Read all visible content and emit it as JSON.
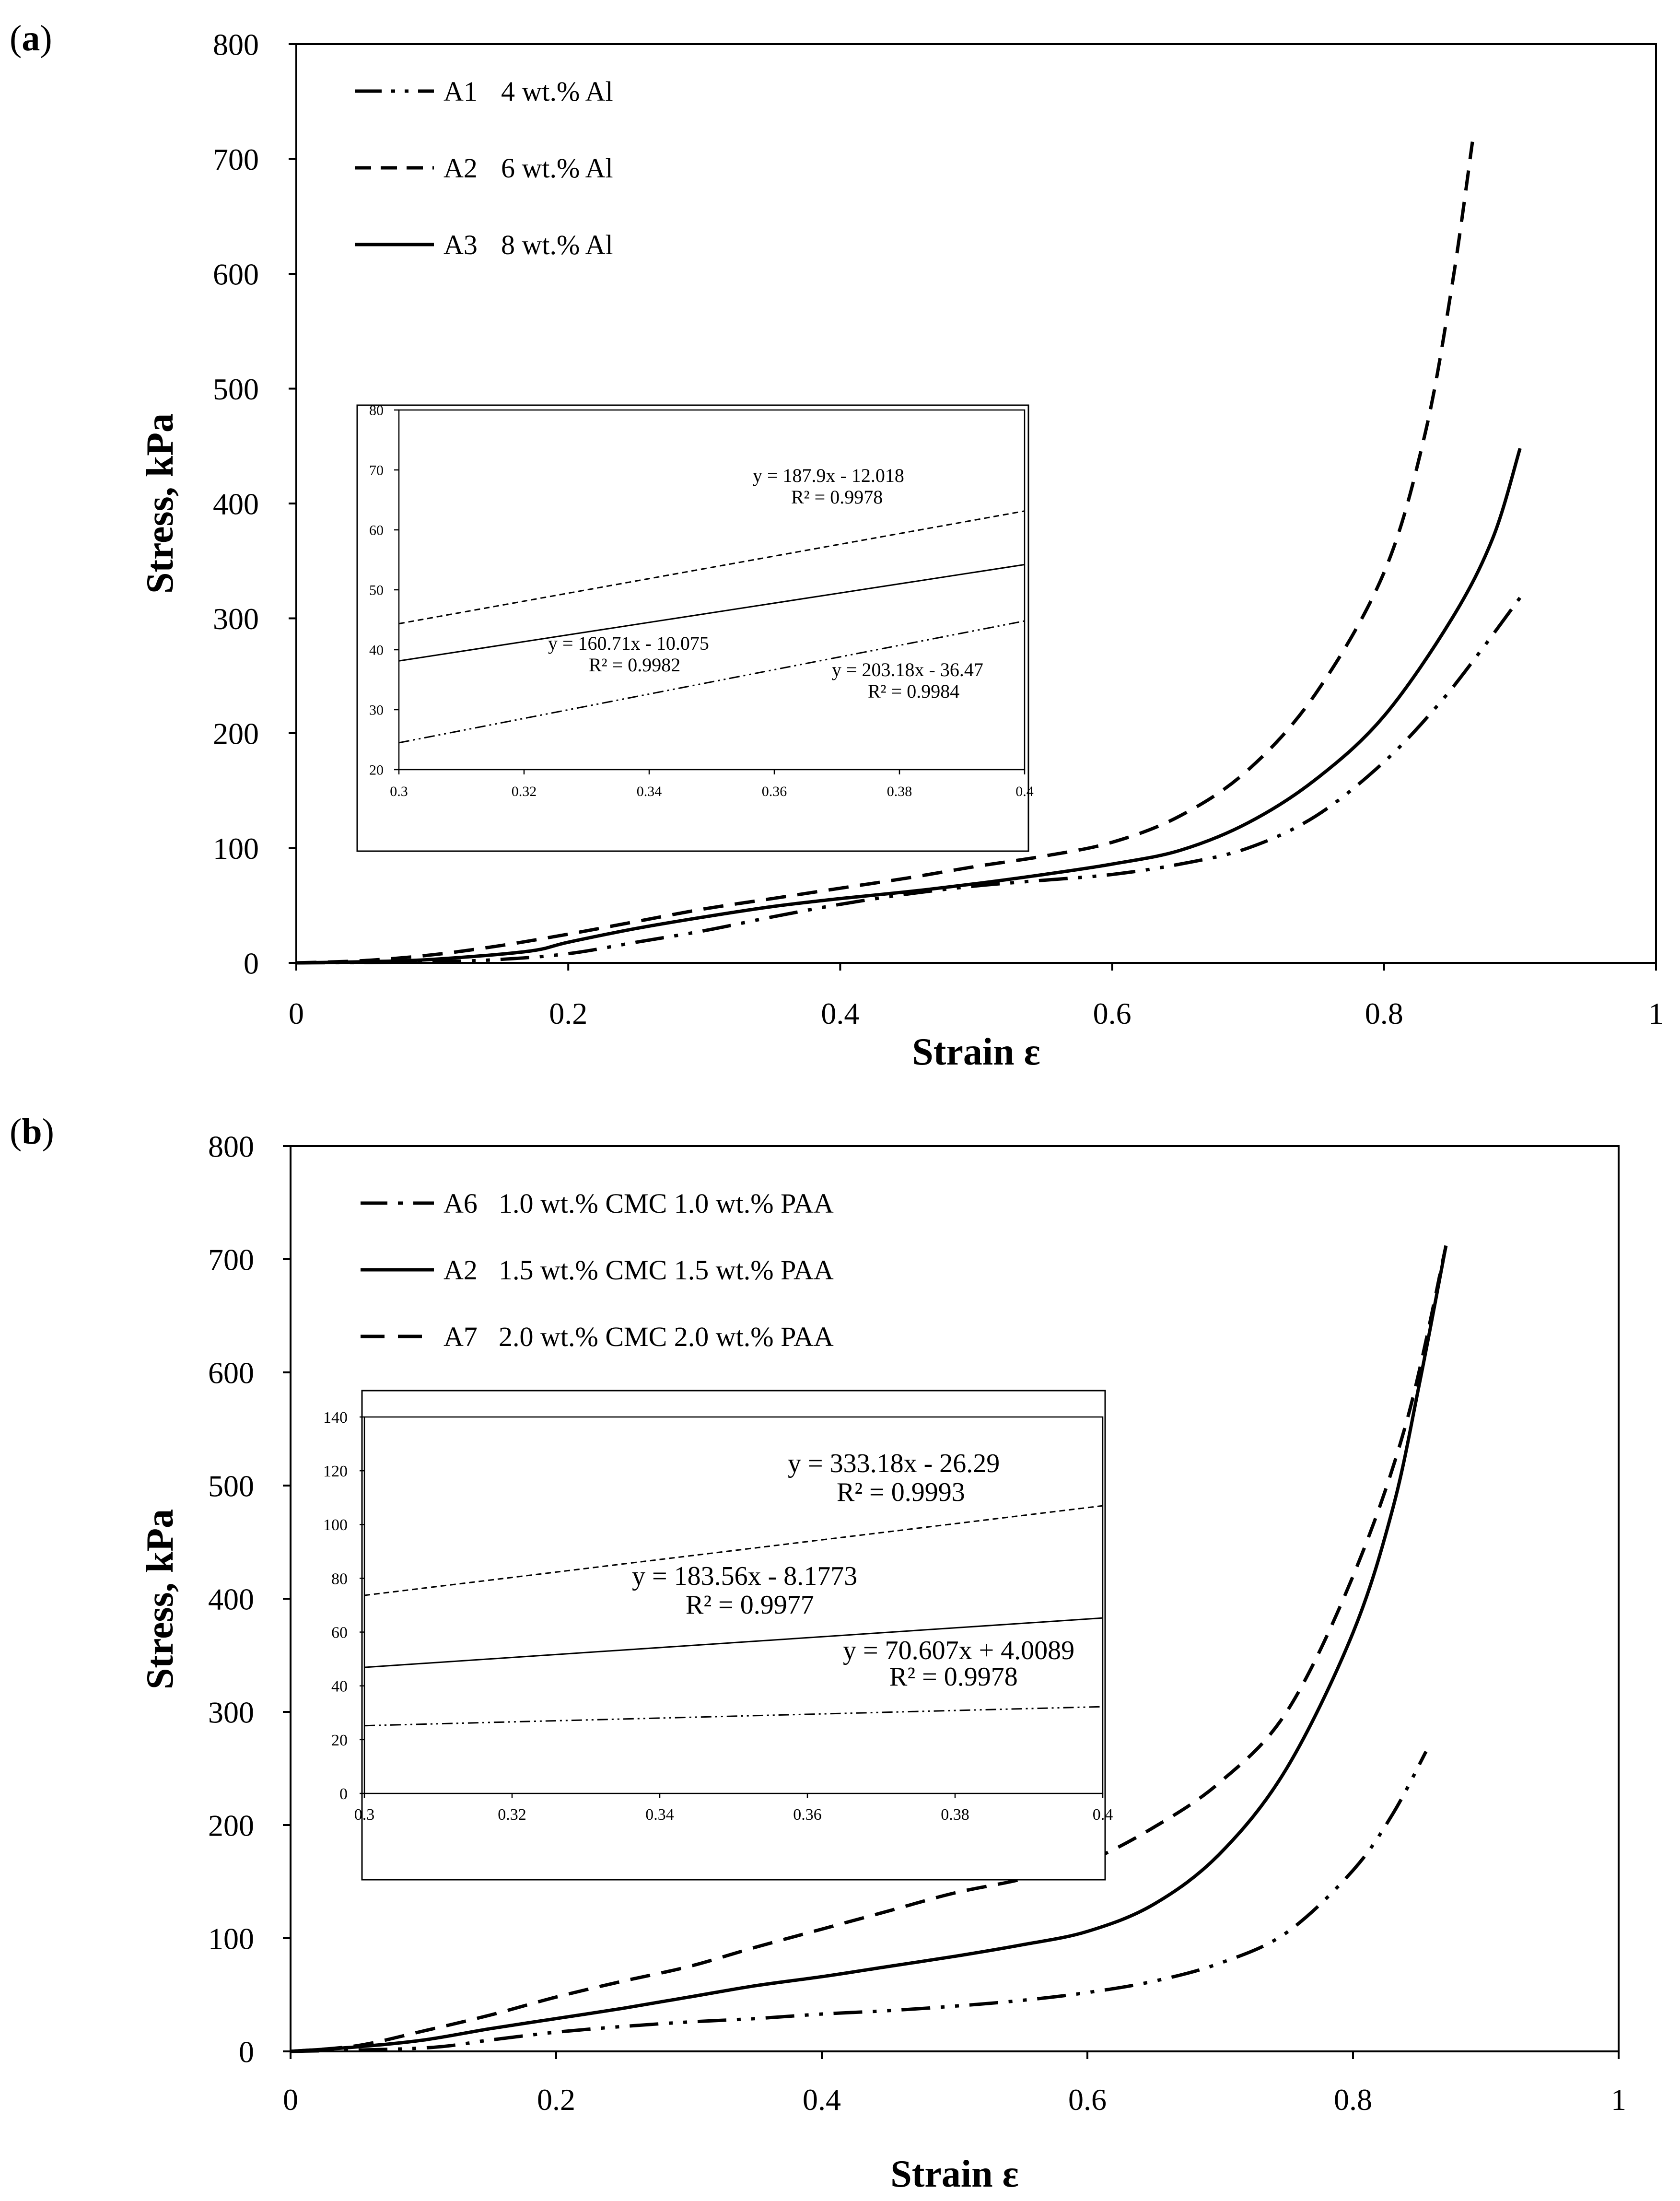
{
  "panels": [
    {
      "label_open": "(",
      "label_letter": "a",
      "label_close": ")",
      "chart_data": {
        "type": "line",
        "title": "",
        "xlabel": "Strain ε",
        "ylabel": "Stress, kPa",
        "xlim": [
          0,
          1
        ],
        "ylim": [
          0,
          800
        ],
        "x_ticks": [
          "0",
          "0.2",
          "0.4",
          "0.6",
          "0.8",
          "1"
        ],
        "y_ticks": [
          "0",
          "100",
          "200",
          "300",
          "400",
          "500",
          "600",
          "700",
          "800"
        ],
        "legend_position": "top-left",
        "series": [
          {
            "code": "A1",
            "name": "4 wt.% Al",
            "style": "dashdot",
            "x": [
              0,
              0.1,
              0.15,
              0.2,
              0.25,
              0.3,
              0.35,
              0.4,
              0.45,
              0.5,
              0.55,
              0.6,
              0.65,
              0.7,
              0.75,
              0.8,
              0.84,
              0.87,
              0.9
            ],
            "y": [
              0,
              1,
              3,
              8,
              18,
              28,
              40,
              51,
              60,
              67,
              72,
              77,
              86,
              100,
              128,
              175,
              225,
              270,
              318
            ]
          },
          {
            "code": "A2",
            "name": "6 wt.% Al",
            "style": "dash",
            "x": [
              0,
              0.05,
              0.1,
              0.15,
              0.2,
              0.25,
              0.3,
              0.35,
              0.4,
              0.45,
              0.5,
              0.55,
              0.6,
              0.65,
              0.7,
              0.75,
              0.8,
              0.83,
              0.85,
              0.865
            ],
            "y": [
              0,
              2,
              7,
              15,
              25,
              36,
              47,
              56,
              65,
              74,
              84,
              93,
              105,
              128,
              168,
              235,
              340,
              460,
              590,
              715
            ]
          },
          {
            "code": "A3",
            "name": "8 wt.% Al",
            "style": "solid",
            "x": [
              0,
              0.05,
              0.1,
              0.17,
              0.2,
              0.25,
              0.3,
              0.35,
              0.4,
              0.45,
              0.5,
              0.55,
              0.6,
              0.65,
              0.7,
              0.75,
              0.8,
              0.85,
              0.88,
              0.9
            ],
            "y": [
              0,
              1,
              3,
              10,
              18,
              30,
              40,
              49,
              56,
              62,
              69,
              77,
              86,
              98,
              122,
              160,
              215,
              300,
              370,
              448
            ]
          }
        ],
        "inset": {
          "xlim": [
            0.3,
            0.4
          ],
          "ylim": [
            20,
            80
          ],
          "x_ticks": [
            "0.3",
            "0.32",
            "0.34",
            "0.36",
            "0.38",
            "0.4"
          ],
          "y_ticks": [
            "20",
            "30",
            "40",
            "50",
            "60",
            "70",
            "80"
          ],
          "lines": [
            {
              "code": "A1",
              "style": "dashdot",
              "slope": 203.18,
              "intercept": -36.47,
              "equation": "y = 203.18x - 36.47",
              "r2": "R² = 0.9984"
            },
            {
              "code": "A2",
              "style": "dash",
              "slope": 187.9,
              "intercept": -12.018,
              "equation": "y = 187.9x - 12.018",
              "r2": "R² = 0.9978"
            },
            {
              "code": "A3",
              "style": "solid",
              "slope": 160.71,
              "intercept": -10.075,
              "equation": "y = 160.71x - 10.075",
              "r2": "R² = 0.9982"
            }
          ]
        }
      }
    },
    {
      "label_open": "(",
      "label_letter": "b",
      "label_close": ")",
      "chart_data": {
        "type": "line",
        "title": "",
        "xlabel": "Strain ε",
        "ylabel": "Stress, kPa",
        "xlim": [
          0,
          1
        ],
        "ylim": [
          0,
          800
        ],
        "x_ticks": [
          "0",
          "0.2",
          "0.4",
          "0.6",
          "0.8",
          "1"
        ],
        "y_ticks": [
          "0",
          "100",
          "200",
          "300",
          "400",
          "500",
          "600",
          "700",
          "800"
        ],
        "legend_position": "top-left",
        "series": [
          {
            "code": "A6",
            "name": "1.0 wt.% CMC 1.0 wt.% PAA",
            "style": "dashdot",
            "x": [
              0,
              0.1,
              0.15,
              0.2,
              0.25,
              0.3,
              0.35,
              0.4,
              0.45,
              0.5,
              0.55,
              0.6,
              0.65,
              0.7,
              0.75,
              0.8,
              0.83,
              0.855
            ],
            "y": [
              0,
              3,
              10,
              17,
              22,
              26,
              29,
              33,
              36,
              40,
              45,
              52,
              62,
              78,
              105,
              160,
              210,
              265
            ]
          },
          {
            "code": "A2",
            "name": "1.5 wt.% CMC 1.5 wt.% PAA",
            "style": "solid",
            "x": [
              0,
              0.05,
              0.1,
              0.15,
              0.2,
              0.25,
              0.3,
              0.35,
              0.4,
              0.45,
              0.5,
              0.55,
              0.6,
              0.65,
              0.7,
              0.75,
              0.8,
              0.83,
              0.85,
              0.87
            ],
            "y": [
              0,
              4,
              10,
              20,
              29,
              38,
              48,
              58,
              66,
              75,
              84,
              94,
              106,
              130,
              175,
              250,
              370,
              480,
              590,
              712
            ]
          },
          {
            "code": "A7",
            "name": "2.0 wt.% CMC 2.0 wt.% PAA",
            "style": "dash",
            "x": [
              0,
              0.05,
              0.1,
              0.15,
              0.2,
              0.25,
              0.3,
              0.35,
              0.4,
              0.45,
              0.5,
              0.55,
              0.6,
              0.65,
              0.7,
              0.75,
              0.8,
              0.84,
              0.87
            ],
            "y": [
              0,
              5,
              18,
              32,
              48,
              62,
              75,
              92,
              108,
              124,
              140,
              152,
              168,
              198,
              238,
              300,
              420,
              555,
              712
            ]
          }
        ],
        "inset": {
          "xlim": [
            0.3,
            0.4
          ],
          "ylim": [
            0,
            140
          ],
          "x_ticks": [
            "0.3",
            "0.32",
            "0.34",
            "0.36",
            "0.38",
            "0.4"
          ],
          "y_ticks": [
            "0",
            "20",
            "40",
            "60",
            "80",
            "100",
            "120",
            "140"
          ],
          "lines": [
            {
              "code": "A6",
              "style": "dashdot",
              "slope": 70.607,
              "intercept": 4.0089,
              "equation": "y = 70.607x + 4.0089",
              "r2": "R² = 0.9978"
            },
            {
              "code": "A2",
              "style": "solid",
              "slope": 183.56,
              "intercept": -8.1773,
              "equation": "y = 183.56x - 8.1773",
              "r2": "R² = 0.9977"
            },
            {
              "code": "A7",
              "style": "dash",
              "slope": 333.18,
              "intercept": -26.29,
              "equation": "y = 333.18x - 26.29",
              "r2": "R² = 0.9993"
            }
          ]
        }
      }
    }
  ]
}
